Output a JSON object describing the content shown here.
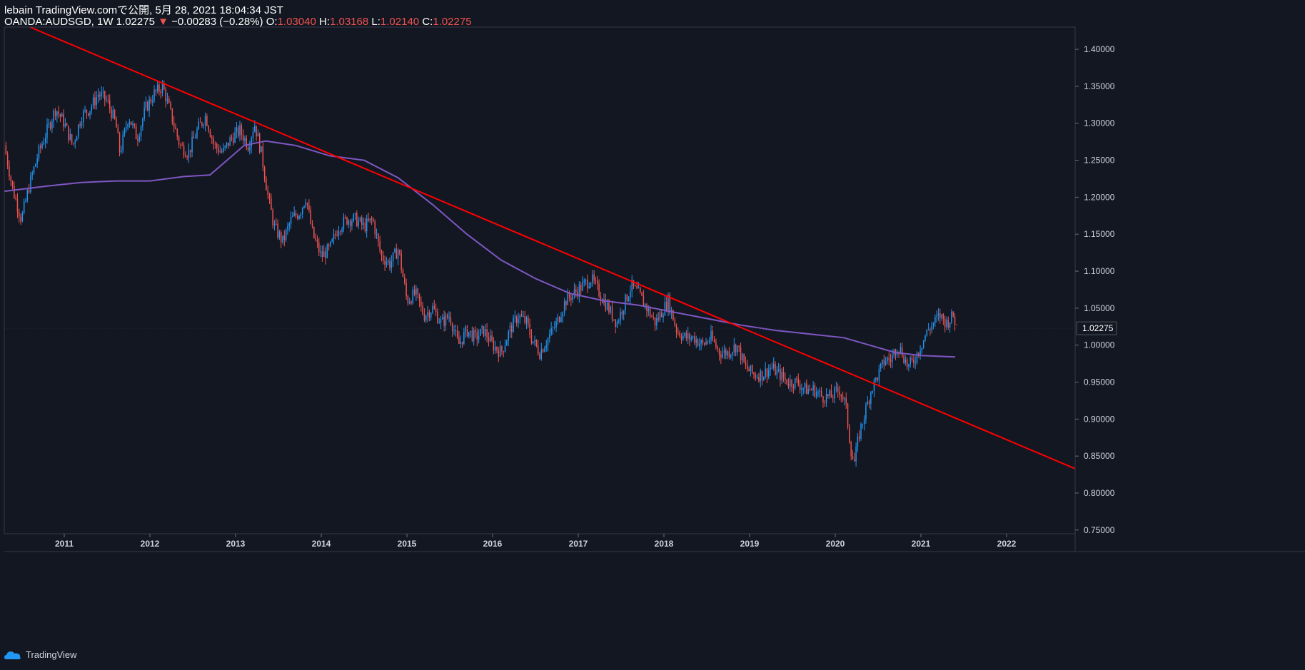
{
  "header": {
    "line1": "lebain TradingView.comで公開, 5月 28, 2021 18:04:34 JST",
    "symbol": "OANDA:AUDSGD, 1W 1.02275",
    "arrow": "▼",
    "change": "−0.00283 (−0.28%)",
    "o_label": "O:",
    "o_value": "1.03040",
    "h_label": "H:",
    "h_value": "1.03168",
    "l_label": "L:",
    "l_value": "1.02140",
    "c_label": "C:",
    "c_value": "1.02275"
  },
  "footer": {
    "brand": "TradingView"
  },
  "colors": {
    "background": "#131722",
    "up": "#2196f3",
    "down": "#ef5350",
    "moving_average": "#7e57c2",
    "trendline": "#ff0000",
    "last_price_bg": "#131722"
  },
  "chart_data": {
    "type": "candlestick",
    "timeframe": "1W",
    "x_ticks": [
      "2011",
      "2012",
      "2013",
      "2014",
      "2015",
      "2016",
      "2017",
      "2018",
      "2019",
      "2020",
      "2021",
      "2022"
    ],
    "y_ticks": [
      "1.40000",
      "1.35000",
      "1.30000",
      "1.25000",
      "1.20000",
      "1.15000",
      "1.10000",
      "1.05000",
      "1.00000",
      "0.95000",
      "0.90000",
      "0.85000",
      "0.80000",
      "0.75000"
    ],
    "ylim": [
      0.745,
      1.43
    ],
    "xlim": [
      2010.3,
      2022.8
    ],
    "last_price": "1.02275",
    "price_path": [
      [
        2010.3,
        1.27
      ],
      [
        2010.4,
        1.21
      ],
      [
        2010.5,
        1.17
      ],
      [
        2010.6,
        1.22
      ],
      [
        2010.7,
        1.26
      ],
      [
        2010.8,
        1.29
      ],
      [
        2010.9,
        1.32
      ],
      [
        2011.0,
        1.3
      ],
      [
        2011.1,
        1.27
      ],
      [
        2011.2,
        1.31
      ],
      [
        2011.3,
        1.32
      ],
      [
        2011.4,
        1.34
      ],
      [
        2011.5,
        1.33
      ],
      [
        2011.6,
        1.3
      ],
      [
        2011.65,
        1.26
      ],
      [
        2011.75,
        1.31
      ],
      [
        2011.85,
        1.28
      ],
      [
        2011.95,
        1.32
      ],
      [
        2012.05,
        1.34
      ],
      [
        2012.15,
        1.35
      ],
      [
        2012.25,
        1.31
      ],
      [
        2012.35,
        1.27
      ],
      [
        2012.45,
        1.26
      ],
      [
        2012.55,
        1.29
      ],
      [
        2012.65,
        1.31
      ],
      [
        2012.75,
        1.27
      ],
      [
        2012.85,
        1.26
      ],
      [
        2012.95,
        1.28
      ],
      [
        2013.05,
        1.29
      ],
      [
        2013.15,
        1.27
      ],
      [
        2013.22,
        1.3
      ],
      [
        2013.3,
        1.26
      ],
      [
        2013.38,
        1.2
      ],
      [
        2013.45,
        1.16
      ],
      [
        2013.55,
        1.14
      ],
      [
        2013.65,
        1.17
      ],
      [
        2013.75,
        1.18
      ],
      [
        2013.82,
        1.2
      ],
      [
        2013.9,
        1.15
      ],
      [
        2014.0,
        1.12
      ],
      [
        2014.1,
        1.13
      ],
      [
        2014.2,
        1.16
      ],
      [
        2014.3,
        1.17
      ],
      [
        2014.4,
        1.17
      ],
      [
        2014.5,
        1.16
      ],
      [
        2014.6,
        1.17
      ],
      [
        2014.7,
        1.12
      ],
      [
        2014.8,
        1.11
      ],
      [
        2014.9,
        1.13
      ],
      [
        2015.0,
        1.06
      ],
      [
        2015.1,
        1.07
      ],
      [
        2015.2,
        1.04
      ],
      [
        2015.3,
        1.05
      ],
      [
        2015.4,
        1.03
      ],
      [
        2015.5,
        1.04
      ],
      [
        2015.6,
        1.0
      ],
      [
        2015.7,
        1.02
      ],
      [
        2015.8,
        1.01
      ],
      [
        2015.9,
        1.02
      ],
      [
        2016.0,
        1.0
      ],
      [
        2016.1,
        0.99
      ],
      [
        2016.2,
        1.02
      ],
      [
        2016.3,
        1.04
      ],
      [
        2016.4,
        1.03
      ],
      [
        2016.45,
        1.01
      ],
      [
        2016.55,
        0.99
      ],
      [
        2016.65,
        1.01
      ],
      [
        2016.75,
        1.03
      ],
      [
        2016.85,
        1.06
      ],
      [
        2016.95,
        1.07
      ],
      [
        2017.05,
        1.08
      ],
      [
        2017.15,
        1.09
      ],
      [
        2017.25,
        1.07
      ],
      [
        2017.35,
        1.05
      ],
      [
        2017.45,
        1.03
      ],
      [
        2017.55,
        1.06
      ],
      [
        2017.62,
        1.08
      ],
      [
        2017.7,
        1.07
      ],
      [
        2017.8,
        1.05
      ],
      [
        2017.9,
        1.03
      ],
      [
        2018.0,
        1.05
      ],
      [
        2018.05,
        1.06
      ],
      [
        2018.15,
        1.02
      ],
      [
        2018.25,
        1.01
      ],
      [
        2018.35,
        1.01
      ],
      [
        2018.45,
        1.0
      ],
      [
        2018.55,
        1.01
      ],
      [
        2018.65,
        0.99
      ],
      [
        2018.75,
        0.99
      ],
      [
        2018.85,
        1.0
      ],
      [
        2018.95,
        0.97
      ],
      [
        2019.05,
        0.96
      ],
      [
        2019.15,
        0.96
      ],
      [
        2019.25,
        0.97
      ],
      [
        2019.35,
        0.96
      ],
      [
        2019.45,
        0.95
      ],
      [
        2019.55,
        0.95
      ],
      [
        2019.65,
        0.94
      ],
      [
        2019.75,
        0.94
      ],
      [
        2019.85,
        0.93
      ],
      [
        2019.95,
        0.93
      ],
      [
        2020.05,
        0.94
      ],
      [
        2020.12,
        0.92
      ],
      [
        2020.18,
        0.86
      ],
      [
        2020.22,
        0.84
      ],
      [
        2020.28,
        0.88
      ],
      [
        2020.35,
        0.91
      ],
      [
        2020.42,
        0.94
      ],
      [
        2020.5,
        0.96
      ],
      [
        2020.58,
        0.98
      ],
      [
        2020.65,
        0.98
      ],
      [
        2020.72,
        1.0
      ],
      [
        2020.78,
        0.99
      ],
      [
        2020.85,
        0.97
      ],
      [
        2020.92,
        0.98
      ],
      [
        2021.0,
        1.0
      ],
      [
        2021.08,
        1.02
      ],
      [
        2021.15,
        1.03
      ],
      [
        2021.22,
        1.04
      ],
      [
        2021.3,
        1.03
      ],
      [
        2021.38,
        1.04
      ],
      [
        2021.42,
        1.0228
      ]
    ],
    "moving_average": [
      [
        2010.3,
        1.208
      ],
      [
        2010.8,
        1.215
      ],
      [
        2011.2,
        1.22
      ],
      [
        2011.6,
        1.222
      ],
      [
        2012.0,
        1.222
      ],
      [
        2012.4,
        1.228
      ],
      [
        2012.7,
        1.23
      ],
      [
        2012.9,
        1.25
      ],
      [
        2013.1,
        1.27
      ],
      [
        2013.35,
        1.276
      ],
      [
        2013.7,
        1.27
      ],
      [
        2014.1,
        1.256
      ],
      [
        2014.5,
        1.25
      ],
      [
        2014.9,
        1.226
      ],
      [
        2015.3,
        1.19
      ],
      [
        2015.7,
        1.15
      ],
      [
        2016.1,
        1.115
      ],
      [
        2016.5,
        1.09
      ],
      [
        2016.9,
        1.07
      ],
      [
        2017.3,
        1.06
      ],
      [
        2017.7,
        1.054
      ],
      [
        2018.1,
        1.045
      ],
      [
        2018.5,
        1.036
      ],
      [
        2018.9,
        1.027
      ],
      [
        2019.3,
        1.02
      ],
      [
        2019.7,
        1.015
      ],
      [
        2020.1,
        1.01
      ],
      [
        2020.4,
        1.0
      ],
      [
        2020.7,
        0.99
      ],
      [
        2021.0,
        0.986
      ],
      [
        2021.4,
        0.984
      ]
    ],
    "trendline": [
      [
        2010.6,
        1.43
      ],
      [
        2022.8,
        0.833
      ]
    ]
  }
}
